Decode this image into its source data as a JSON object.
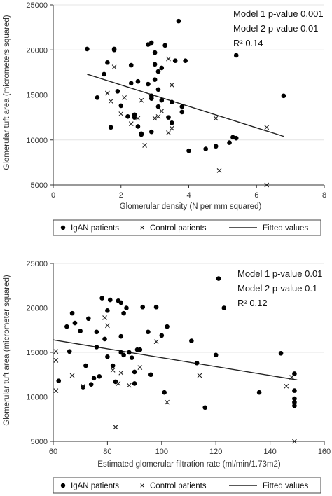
{
  "chart_data": [
    {
      "type": "scatter",
      "xlabel": "Glomerular density (N per mm squared)",
      "ylabel": "Glomerular tuft area (micrometers squared)",
      "xlim": [
        0,
        8
      ],
      "ylim": [
        5000,
        25000
      ],
      "x_ticks": [
        0,
        2,
        4,
        6,
        8
      ],
      "y_ticks": [
        5000,
        10000,
        15000,
        20000,
        25000
      ],
      "grid": true,
      "annotations": [
        "Model 1 p-value 0.001",
        "Model 2 p-value 0.01",
        "R² 0.14"
      ],
      "legend": [
        "IgAN patients",
        "Control patients",
        "Fitted values"
      ],
      "series": [
        {
          "name": "IgAN patients",
          "marker": "dot",
          "points": [
            [
              1.0,
              20100
            ],
            [
              1.3,
              14700
            ],
            [
              1.5,
              17300
            ],
            [
              1.6,
              18600
            ],
            [
              1.7,
              11400
            ],
            [
              1.8,
              20100
            ],
            [
              1.8,
              20000
            ],
            [
              1.9,
              15400
            ],
            [
              2.0,
              13800
            ],
            [
              2.2,
              12600
            ],
            [
              2.3,
              16300
            ],
            [
              2.3,
              18300
            ],
            [
              2.4,
              12800
            ],
            [
              2.4,
              12500
            ],
            [
              2.5,
              16500
            ],
            [
              2.5,
              11500
            ],
            [
              2.6,
              10700
            ],
            [
              2.6,
              10600
            ],
            [
              2.8,
              16200
            ],
            [
              2.8,
              20600
            ],
            [
              2.9,
              14600
            ],
            [
              2.9,
              14900
            ],
            [
              2.9,
              20800
            ],
            [
              2.9,
              10900
            ],
            [
              3.0,
              19700
            ],
            [
              3.0,
              16700
            ],
            [
              3.0,
              18400
            ],
            [
              3.1,
              15600
            ],
            [
              3.1,
              13700
            ],
            [
              3.1,
              17600
            ],
            [
              3.2,
              18000
            ],
            [
              3.2,
              14400
            ],
            [
              3.3,
              20500
            ],
            [
              3.4,
              12500
            ],
            [
              3.5,
              14200
            ],
            [
              3.5,
              11900
            ],
            [
              3.6,
              18800
            ],
            [
              3.7,
              23200
            ],
            [
              3.8,
              13700
            ],
            [
              3.8,
              13100
            ],
            [
              3.9,
              18800
            ],
            [
              4.0,
              8800
            ],
            [
              4.5,
              9000
            ],
            [
              4.8,
              9300
            ],
            [
              5.2,
              9700
            ],
            [
              5.3,
              10300
            ],
            [
              5.4,
              19400
            ],
            [
              5.4,
              10200
            ],
            [
              6.8,
              14900
            ]
          ]
        },
        {
          "name": "Control patients",
          "marker": "x",
          "points": [
            [
              1.6,
              15200
            ],
            [
              1.7,
              14300
            ],
            [
              1.8,
              18100
            ],
            [
              2.0,
              12900
            ],
            [
              2.1,
              14700
            ],
            [
              2.3,
              11800
            ],
            [
              2.5,
              12400
            ],
            [
              2.6,
              14400
            ],
            [
              2.7,
              9400
            ],
            [
              3.0,
              12400
            ],
            [
              3.1,
              12600
            ],
            [
              3.2,
              13200
            ],
            [
              3.4,
              10800
            ],
            [
              3.4,
              19000
            ],
            [
              3.5,
              16100
            ],
            [
              3.5,
              11300
            ],
            [
              4.8,
              12400
            ],
            [
              4.9,
              6600
            ],
            [
              6.3,
              11400
            ],
            [
              6.3,
              5000
            ]
          ]
        }
      ],
      "fit_line": {
        "name": "Fitted values",
        "x": [
          1.0,
          6.8
        ],
        "y": [
          17300,
          10400
        ]
      }
    },
    {
      "type": "scatter",
      "xlabel": "Estimated glomerular filtration rate (ml/min/1.73m2)",
      "ylabel": "Glomerular tuft area (micrometer squared)",
      "xlim": [
        60,
        160
      ],
      "ylim": [
        5000,
        25000
      ],
      "x_ticks": [
        60,
        80,
        100,
        120,
        140,
        160
      ],
      "y_ticks": [
        5000,
        10000,
        15000,
        20000,
        25000
      ],
      "grid": true,
      "annotations": [
        "Model 1 p-value 0.01",
        "Model 2 p-value 0.1",
        "R² 0.12"
      ],
      "legend": [
        "IgAN patients",
        "Control patients",
        "Fitted values"
      ],
      "series": [
        {
          "name": "IgAN patients",
          "marker": "dot",
          "points": [
            [
              62,
              11800
            ],
            [
              65,
              17900
            ],
            [
              66,
              15100
            ],
            [
              67,
              19400
            ],
            [
              68,
              18300
            ],
            [
              70,
              17400
            ],
            [
              71,
              11100
            ],
            [
              72,
              13500
            ],
            [
              73,
              18800
            ],
            [
              74,
              11400
            ],
            [
              75,
              12100
            ],
            [
              76,
              17300
            ],
            [
              76,
              15600
            ],
            [
              77,
              12300
            ],
            [
              78,
              21100
            ],
            [
              79,
              16500
            ],
            [
              80,
              19700
            ],
            [
              80,
              14500
            ],
            [
              81,
              20900
            ],
            [
              82,
              13500
            ],
            [
              83,
              11700
            ],
            [
              84,
              20800
            ],
            [
              85,
              20600
            ],
            [
              85,
              16800
            ],
            [
              85,
              15000
            ],
            [
              86,
              14700
            ],
            [
              86,
              19400
            ],
            [
              87,
              20000
            ],
            [
              88,
              15000
            ],
            [
              89,
              14400
            ],
            [
              90,
              11500
            ],
            [
              90,
              12800
            ],
            [
              91,
              15300
            ],
            [
              92,
              15300
            ],
            [
              93,
              20100
            ],
            [
              95,
              17300
            ],
            [
              96,
              12500
            ],
            [
              98,
              20100
            ],
            [
              100,
              16900
            ],
            [
              101,
              10500
            ],
            [
              102,
              17900
            ],
            [
              111,
              16300
            ],
            [
              113,
              13800
            ],
            [
              116,
              8800
            ],
            [
              120,
              14700
            ],
            [
              121,
              23300
            ],
            [
              123,
              20000
            ],
            [
              136,
              10500
            ],
            [
              144,
              14900
            ],
            [
              149,
              12600
            ],
            [
              149,
              10700
            ],
            [
              149,
              9800
            ],
            [
              149,
              9400
            ],
            [
              149,
              9000
            ]
          ]
        },
        {
          "name": "Control patients",
          "marker": "x",
          "points": [
            [
              61,
              15100
            ],
            [
              61,
              14100
            ],
            [
              61,
              10700
            ],
            [
              67,
              12400
            ],
            [
              71,
              11200
            ],
            [
              79,
              18900
            ],
            [
              80,
              18000
            ],
            [
              82,
              13000
            ],
            [
              84,
              11500
            ],
            [
              85,
              12700
            ],
            [
              88,
              11300
            ],
            [
              92,
              13300
            ],
            [
              98,
              16200
            ],
            [
              102,
              9400
            ],
            [
              114,
              12400
            ],
            [
              146,
              11200
            ],
            [
              148,
              12200
            ],
            [
              149,
              5000
            ],
            [
              83,
              6600
            ]
          ]
        }
      ],
      "fit_line": {
        "name": "Fitted values",
        "x": [
          60,
          150
        ],
        "y": [
          16400,
          11900
        ]
      }
    }
  ]
}
